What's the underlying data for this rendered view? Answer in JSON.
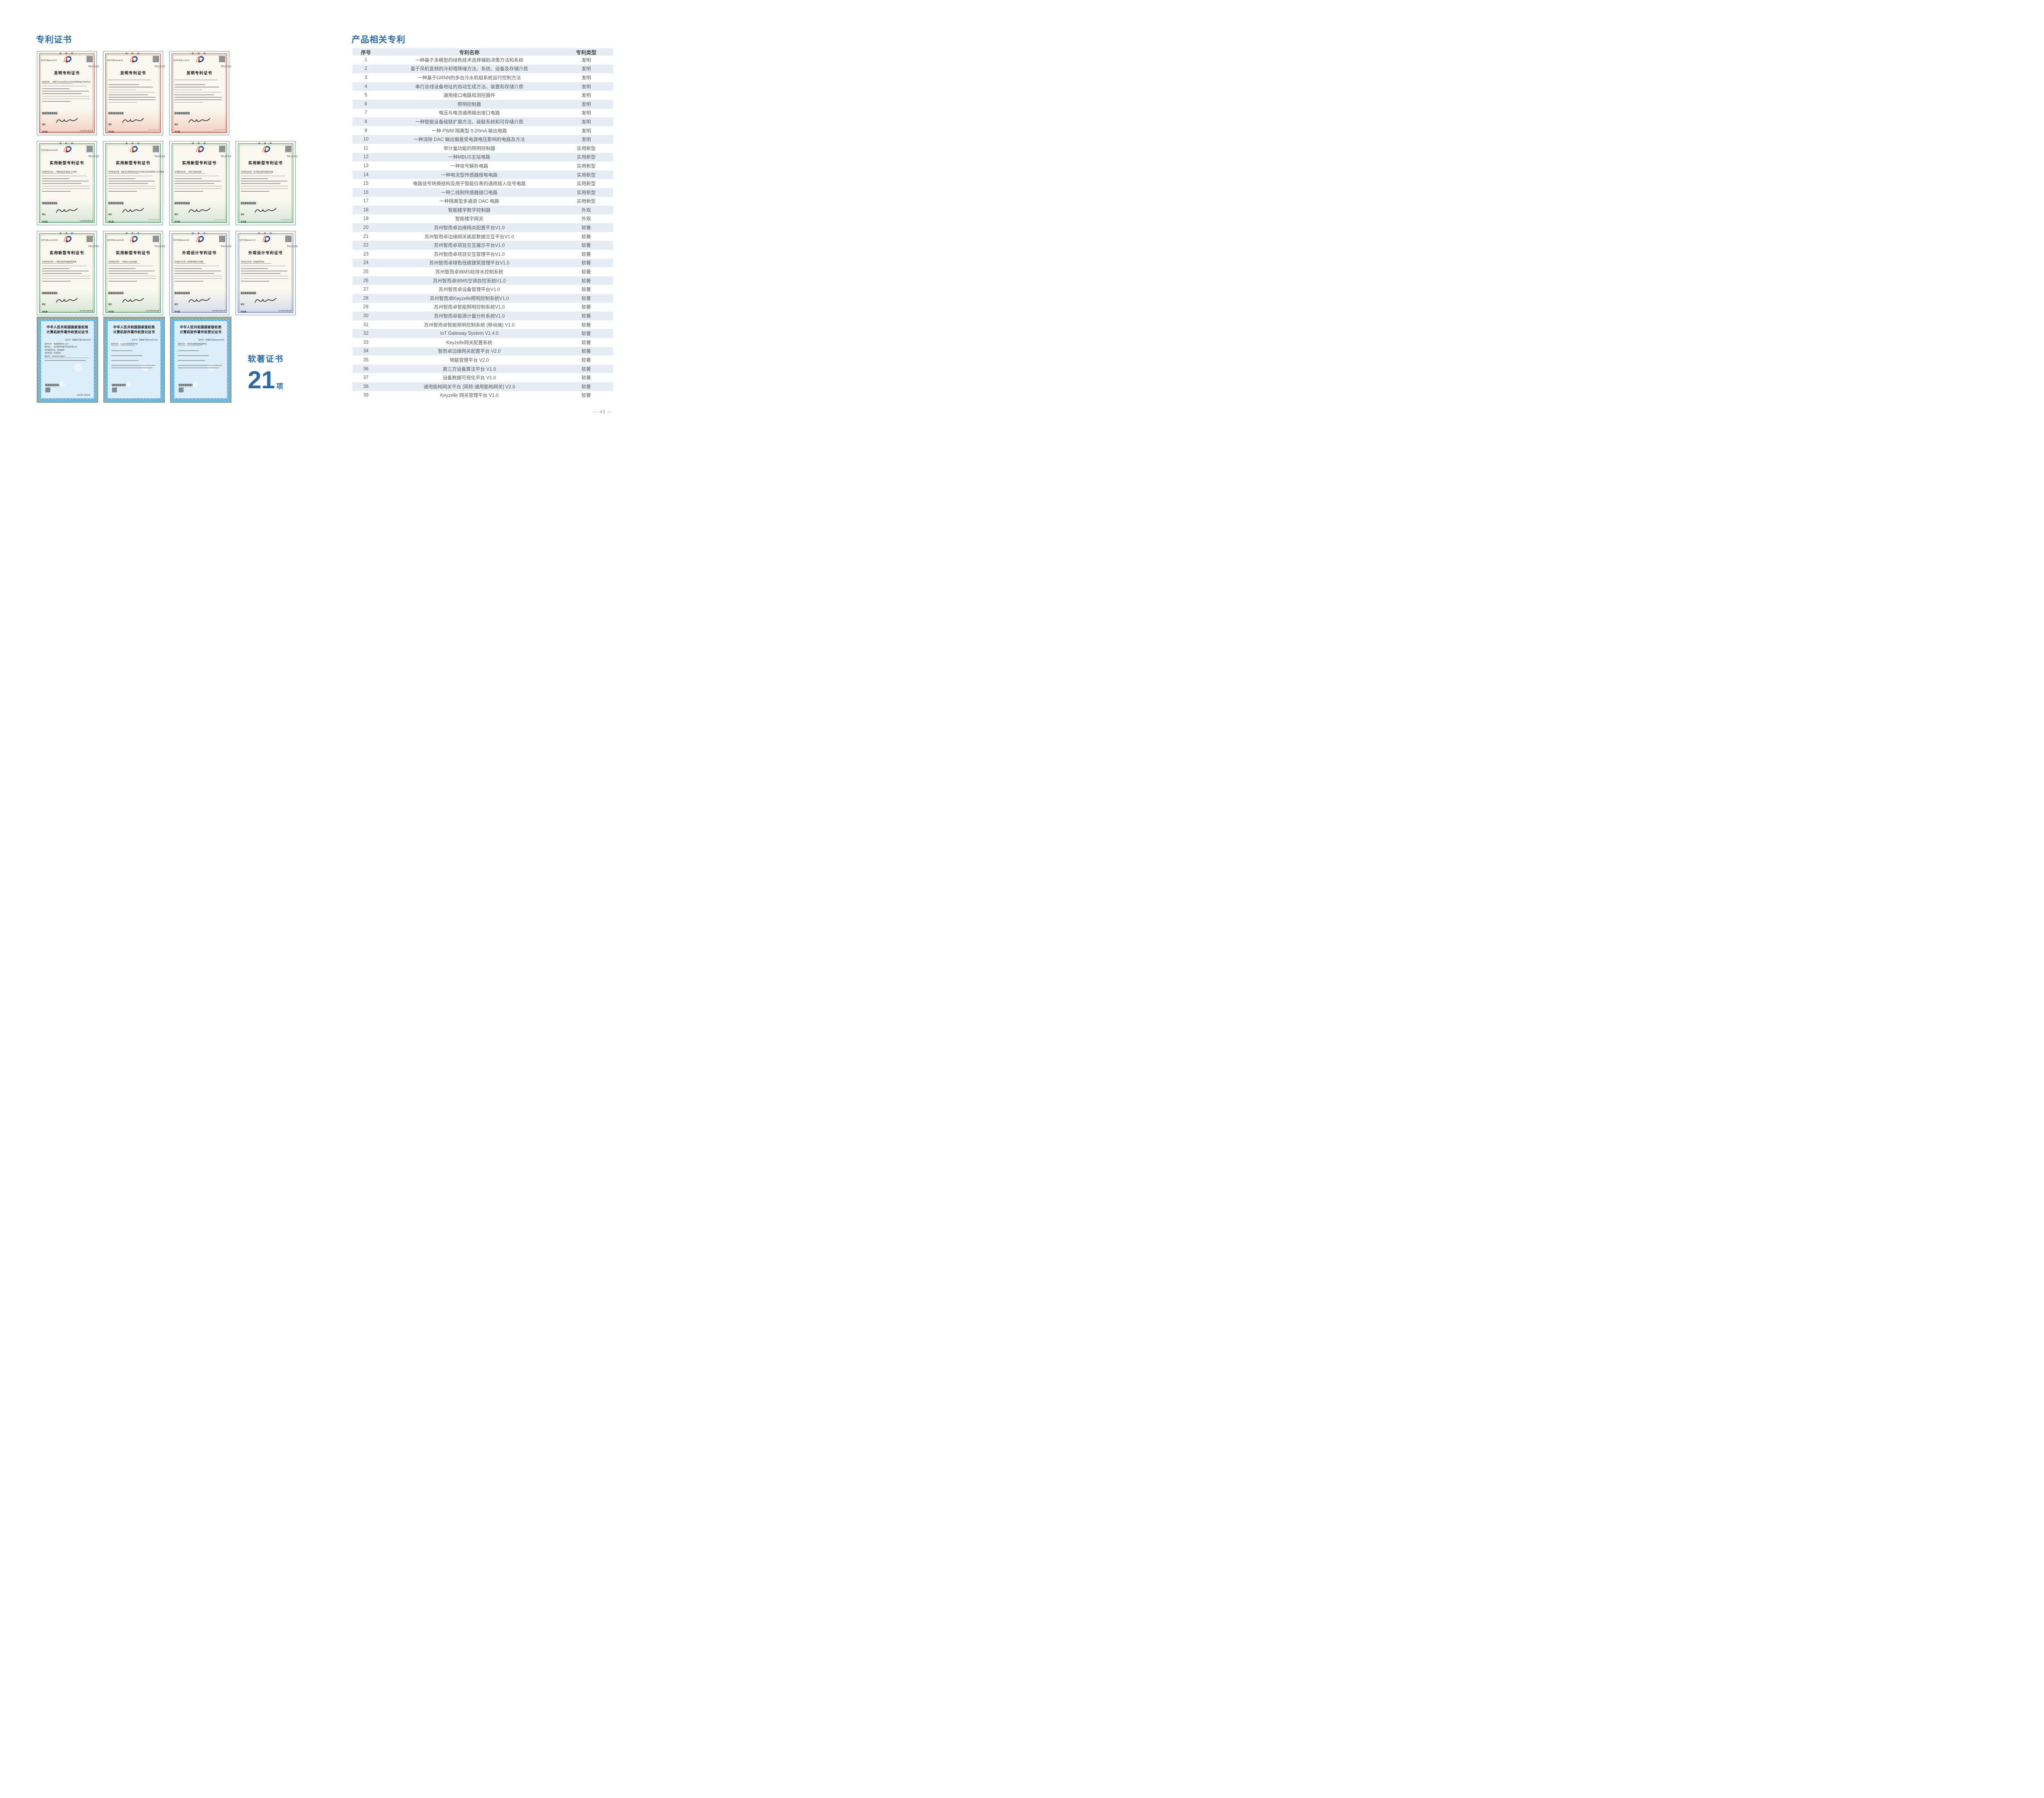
{
  "colors": {
    "accent_blue": "#2b6ca7",
    "table_stripe": "#e7edf4",
    "table_text": "#595c5f",
    "invention_theme": "#a63a32",
    "utility_theme": "#2f7a4d",
    "design_theme": "#5565a4",
    "software_gold": "#c9a254",
    "software_blue": "#57b4e8"
  },
  "left_section": {
    "title": "专利证书",
    "software_badge": {
      "label": "软著证书",
      "count": "21",
      "unit": "项"
    }
  },
  "cert_types": {
    "invention": {
      "title": "发明专利证书",
      "name_label": "发明名称"
    },
    "utility": {
      "title": "实用新型专利证书",
      "name_label": "实用新型名称"
    },
    "design": {
      "title": "外观设计专利证书",
      "name_label": "外观设计名称"
    },
    "software": {
      "title_line1": "中华人民共和国国家版权局",
      "title_line2": "计算机软件著作权登记证书",
      "name_label": "软件名称",
      "cert_no_label": "证书号"
    }
  },
  "cert_common": {
    "director_label": "局长",
    "director_name": "申长雨",
    "qr_caption": "专利公告信息",
    "cert_no_prefix": "证书号"
  },
  "cert_grid": [
    {
      "items": [
        {
          "type": "invention",
          "cert_no": "证书号第6661534号",
          "name": "一种基于GRNN的多台冷水机组系统运行控制方法",
          "date": "2024年01月30日"
        },
        {
          "type": "invention",
          "cert_no": "证书号第8000883号"
        },
        {
          "type": "invention",
          "cert_no": "证书号第6817761号"
        }
      ]
    },
    {
      "items": [
        {
          "type": "utility",
          "cert_no": "证书号第22926608号",
          "name": "一种隔离型多通道DAC电路",
          "date": "2025年06月03日"
        },
        {
          "type": "utility",
          "name": "电路信号转换结构及用于智能仪表的通用接入信号电路"
        },
        {
          "type": "utility",
          "name": "一种信号解析电路"
        },
        {
          "type": "utility",
          "name": "带计量功能的照明控制器"
        }
      ]
    },
    {
      "items": [
        {
          "type": "utility",
          "cert_no": "证书号第21815578号",
          "name": "一种电流型传感器授电电路",
          "date": "2024年10月15日"
        },
        {
          "type": "utility",
          "cert_no": "证书号第21626558号",
          "name": "一种MBUS主站电路",
          "date": "2024年09月03日"
        },
        {
          "type": "design",
          "cert_no": "证书号第8604075号",
          "name": "智能楼宇数字控制器",
          "date": "2024年04月16日"
        },
        {
          "type": "design",
          "cert_no": "证书号第8605671号",
          "name": "智能楼宇网关",
          "date": "2024年04月16日"
        }
      ]
    },
    {
      "items": [
        {
          "type": "software",
          "cert_no": "软著登字第15865015号",
          "lines": [
            "软件名称：物联管理平台 V2.0",
            "著作权人：苏州智而卓数字科技有限公司",
            "权利取得方式：原始取得",
            "权利范围：全部权利",
            "登记号：2025SR1208817"
          ],
          "date": "2025年07月09日"
        },
        {
          "type": "software",
          "cert_no": "软著登字第15835675号",
          "lines": [
            "软件名称：Keyzelle网关管理平台"
          ]
        },
        {
          "type": "software",
          "cert_no": "软著登字第15863449号",
          "lines": [
            "软件名称：智而卓边缘网关配置平台"
          ]
        }
      ]
    }
  ],
  "table": {
    "title": "产品相关专利",
    "headers": [
      "序号",
      "专利名称",
      "专利类型"
    ],
    "rows": [
      {
        "no": "1",
        "name": "一种基于多模型的绿色技术选择辅助决策方法和系统",
        "type": "发明"
      },
      {
        "no": "2",
        "name": "基于风机变频的冷却塔降噪方法、系统、设备及存储介质",
        "type": "发明"
      },
      {
        "no": "3",
        "name": "一种基于GRNN的多台冷水机组系统运行控制方法",
        "type": "发明"
      },
      {
        "no": "4",
        "name": "串行总线设备地址的自动生成方法、装置和存储介质",
        "type": "发明"
      },
      {
        "no": "5",
        "name": "通用接口电路和测控器件",
        "type": "发明"
      },
      {
        "no": "6",
        "name": "照明控制器",
        "type": "发明"
      },
      {
        "no": "7",
        "name": "电压与电流通用输出接口电路",
        "type": "发明"
      },
      {
        "no": "8",
        "name": "一种智能设备级联扩展方法、级联系统和可存储介质",
        "type": "发明"
      },
      {
        "no": "9",
        "name": "一种 PWM 隔离型 0-20mA 输出电路",
        "type": "发明"
      },
      {
        "no": "10",
        "name": "一种消除 DAC 输出偏差受电源电压影响的电路及方法",
        "type": "发明"
      },
      {
        "no": "11",
        "name": "带计量功能的照明控制器",
        "type": "实用新型"
      },
      {
        "no": "12",
        "name": "一种MBUS主站电路",
        "type": "实用新型"
      },
      {
        "no": "13",
        "name": "一种信号解析电路",
        "type": "实用新型"
      },
      {
        "no": "14",
        "name": "一种电流型传感器授电电路",
        "type": "实用新型"
      },
      {
        "no": "15",
        "name": "电路信号转换结构及用于智能仪表的通用接入信号电路",
        "type": "实用新型"
      },
      {
        "no": "16",
        "name": "一种二线制传感器接口电路",
        "type": "实用新型"
      },
      {
        "no": "17",
        "name": "一种隔离型多通道 DAC 电路",
        "type": "实用新型"
      },
      {
        "no": "18",
        "name": "智能楼宇数字控制器",
        "type": "外观"
      },
      {
        "no": "19",
        "name": "智能楼宇网关",
        "type": "外观"
      },
      {
        "no": "20",
        "name": "苏州智而卓边缘网关配置平台V1.0",
        "type": "软著"
      },
      {
        "no": "21",
        "name": "苏州智而卓边缘网关底层数据交互平台V1.0",
        "type": "软著"
      },
      {
        "no": "22",
        "name": "苏州智而卓项目交互展示平台V1.0",
        "type": "软著"
      },
      {
        "no": "23",
        "name": "苏州智而卓项目交互管理平台V1.0",
        "type": "软著"
      },
      {
        "no": "24",
        "name": "苏州智而卓绿色低碳建筑管理平台V1.0",
        "type": "软著"
      },
      {
        "no": "25",
        "name": "苏州智而卓IBMS给排水控制系统",
        "type": "软著"
      },
      {
        "no": "26",
        "name": "苏州智而卓IBMS空调自控系统V1.0",
        "type": "软著"
      },
      {
        "no": "27",
        "name": "苏州智而卓设备管理平台V1.0",
        "type": "软著"
      },
      {
        "no": "28",
        "name": "苏州智而卓Keyzelle照明控制系统V1.0",
        "type": "软著"
      },
      {
        "no": "29",
        "name": "苏州智而卓智能照明控制系统V1.0",
        "type": "软著"
      },
      {
        "no": "30",
        "name": "苏州智而卓能源计量分析系统V1.0",
        "type": "软著"
      },
      {
        "no": "31",
        "name": "苏州智而卓智能照明控制系统 (移动端) V1.0",
        "type": "软著"
      },
      {
        "no": "32",
        "name": "IoT Gateway System V1.4.0",
        "type": "软著"
      },
      {
        "no": "33",
        "name": "Keyzelle网关配置系统",
        "type": "软著"
      },
      {
        "no": "34",
        "name": "智而卓边缘网关配置平台 V2.0",
        "type": "软著"
      },
      {
        "no": "35",
        "name": "物联管理平台 V2.0",
        "type": "软著"
      },
      {
        "no": "36",
        "name": "第三方设备算法平台 V1.0",
        "type": "软著"
      },
      {
        "no": "37",
        "name": "设备数据可视化平台 V1.0",
        "type": "软著"
      },
      {
        "no": "38",
        "name": "通用能耗网关平台 [简称:通用能耗网关] V2.0",
        "type": "软著"
      },
      {
        "no": "39",
        "name": "Keyzelle 网关管理平台 V1.0",
        "type": "软著"
      }
    ]
  },
  "footer": {
    "page_number": "— 43 —"
  }
}
